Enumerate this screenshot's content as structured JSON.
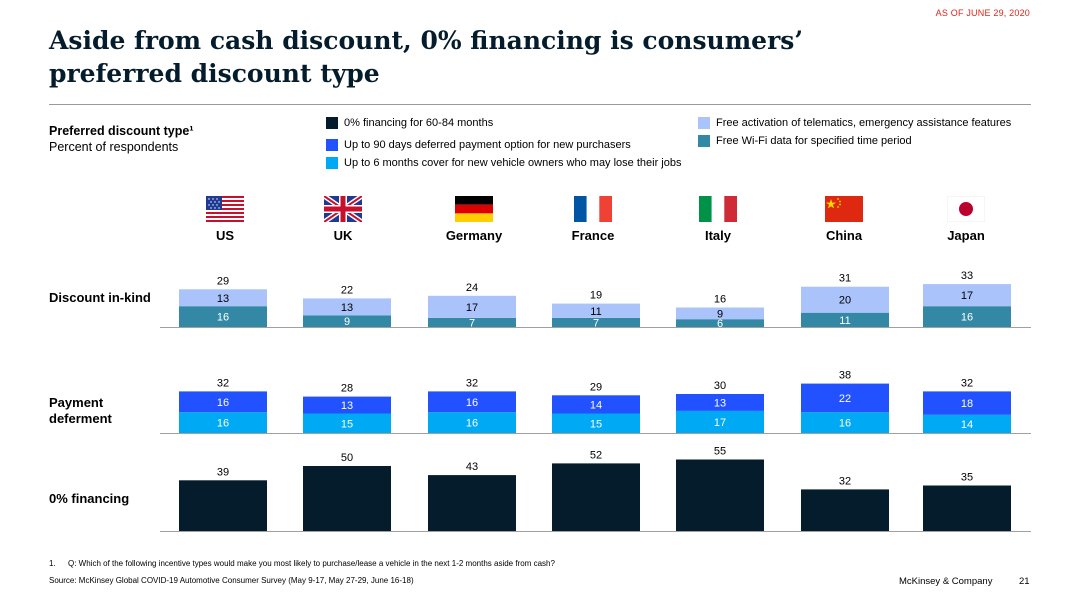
{
  "header": {
    "as_of": "AS OF JUNE 29, 2020",
    "title_line1": "Aside from cash discount, 0% financing is consumers’",
    "title_line2": "preferred discount type"
  },
  "subtitle": {
    "main": "Preferred discount type¹",
    "unit": "Percent of respondents"
  },
  "legend": [
    {
      "label": "0% financing for 60-84 months",
      "color": "#051c2c"
    },
    {
      "label": "Up to 90 days deferred payment option for new purchasers",
      "color": "#2251ff"
    },
    {
      "label": "Up to 6 months cover for new vehicle owners who may lose their jobs",
      "color": "#00a9f4"
    },
    {
      "label": "Free activation of telematics, emergency assistance features",
      "color": "#aac3fb"
    },
    {
      "label": "Free Wi-Fi data for specified time period",
      "color": "#3388a6"
    }
  ],
  "countries": [
    {
      "name": "US",
      "flag": "us-flag-icon"
    },
    {
      "name": "UK",
      "flag": "uk-flag-icon"
    },
    {
      "name": "Germany",
      "flag": "germany-flag-icon"
    },
    {
      "name": "France",
      "flag": "france-flag-icon"
    },
    {
      "name": "Italy",
      "flag": "italy-flag-icon"
    },
    {
      "name": "China",
      "flag": "china-flag-icon"
    },
    {
      "name": "Japan",
      "flag": "japan-flag-icon"
    }
  ],
  "chart_data": {
    "type": "bar",
    "stacked": true,
    "categories": [
      "US",
      "UK",
      "Germany",
      "France",
      "Italy",
      "China",
      "Japan"
    ],
    "groups": [
      {
        "name": "Discount in-kind",
        "totals": [
          29,
          22,
          24,
          19,
          16,
          31,
          33
        ],
        "series": [
          {
            "name": "Free Wi-Fi data for specified time period",
            "color": "#3388a6",
            "values": [
              16,
              9,
              7,
              7,
              6,
              11,
              16
            ]
          },
          {
            "name": "Free activation of telematics, emergency assistance features",
            "color": "#aac3fb",
            "values": [
              13,
              13,
              17,
              11,
              9,
              20,
              17
            ]
          }
        ]
      },
      {
        "name": "Payment deferment",
        "totals": [
          32,
          28,
          32,
          29,
          30,
          38,
          32
        ],
        "series": [
          {
            "name": "Up to 6 months cover for new vehicle owners who may lose their jobs",
            "color": "#00a9f4",
            "values": [
              16,
              15,
              16,
              15,
              17,
              16,
              14
            ]
          },
          {
            "name": "Up to 90 days deferred payment option for new purchasers",
            "color": "#2251ff",
            "values": [
              16,
              13,
              16,
              14,
              13,
              22,
              18
            ]
          }
        ]
      },
      {
        "name": "0% financing",
        "totals": [
          39,
          50,
          43,
          52,
          55,
          32,
          35
        ],
        "series": [
          {
            "name": "0% financing for 60-84 months",
            "color": "#051c2c",
            "values": [
              39,
              50,
              43,
              52,
              55,
              32,
              35
            ]
          }
        ]
      }
    ],
    "row_labels": [
      "Discount in-kind",
      "Payment\ndeferment",
      "0% financing"
    ]
  },
  "footer": {
    "footnote_num": "1.",
    "footnote": "Q: Which of the following incentive types would make you most likely to purchase/lease a vehicle in the next 1-2 months aside from cash?",
    "source": "Source: McKinsey Global COVID-19 Automotive Consumer Survey (May 9-17, May 27-29, June 16-18)",
    "brand": "McKinsey & Company",
    "page": "21"
  }
}
